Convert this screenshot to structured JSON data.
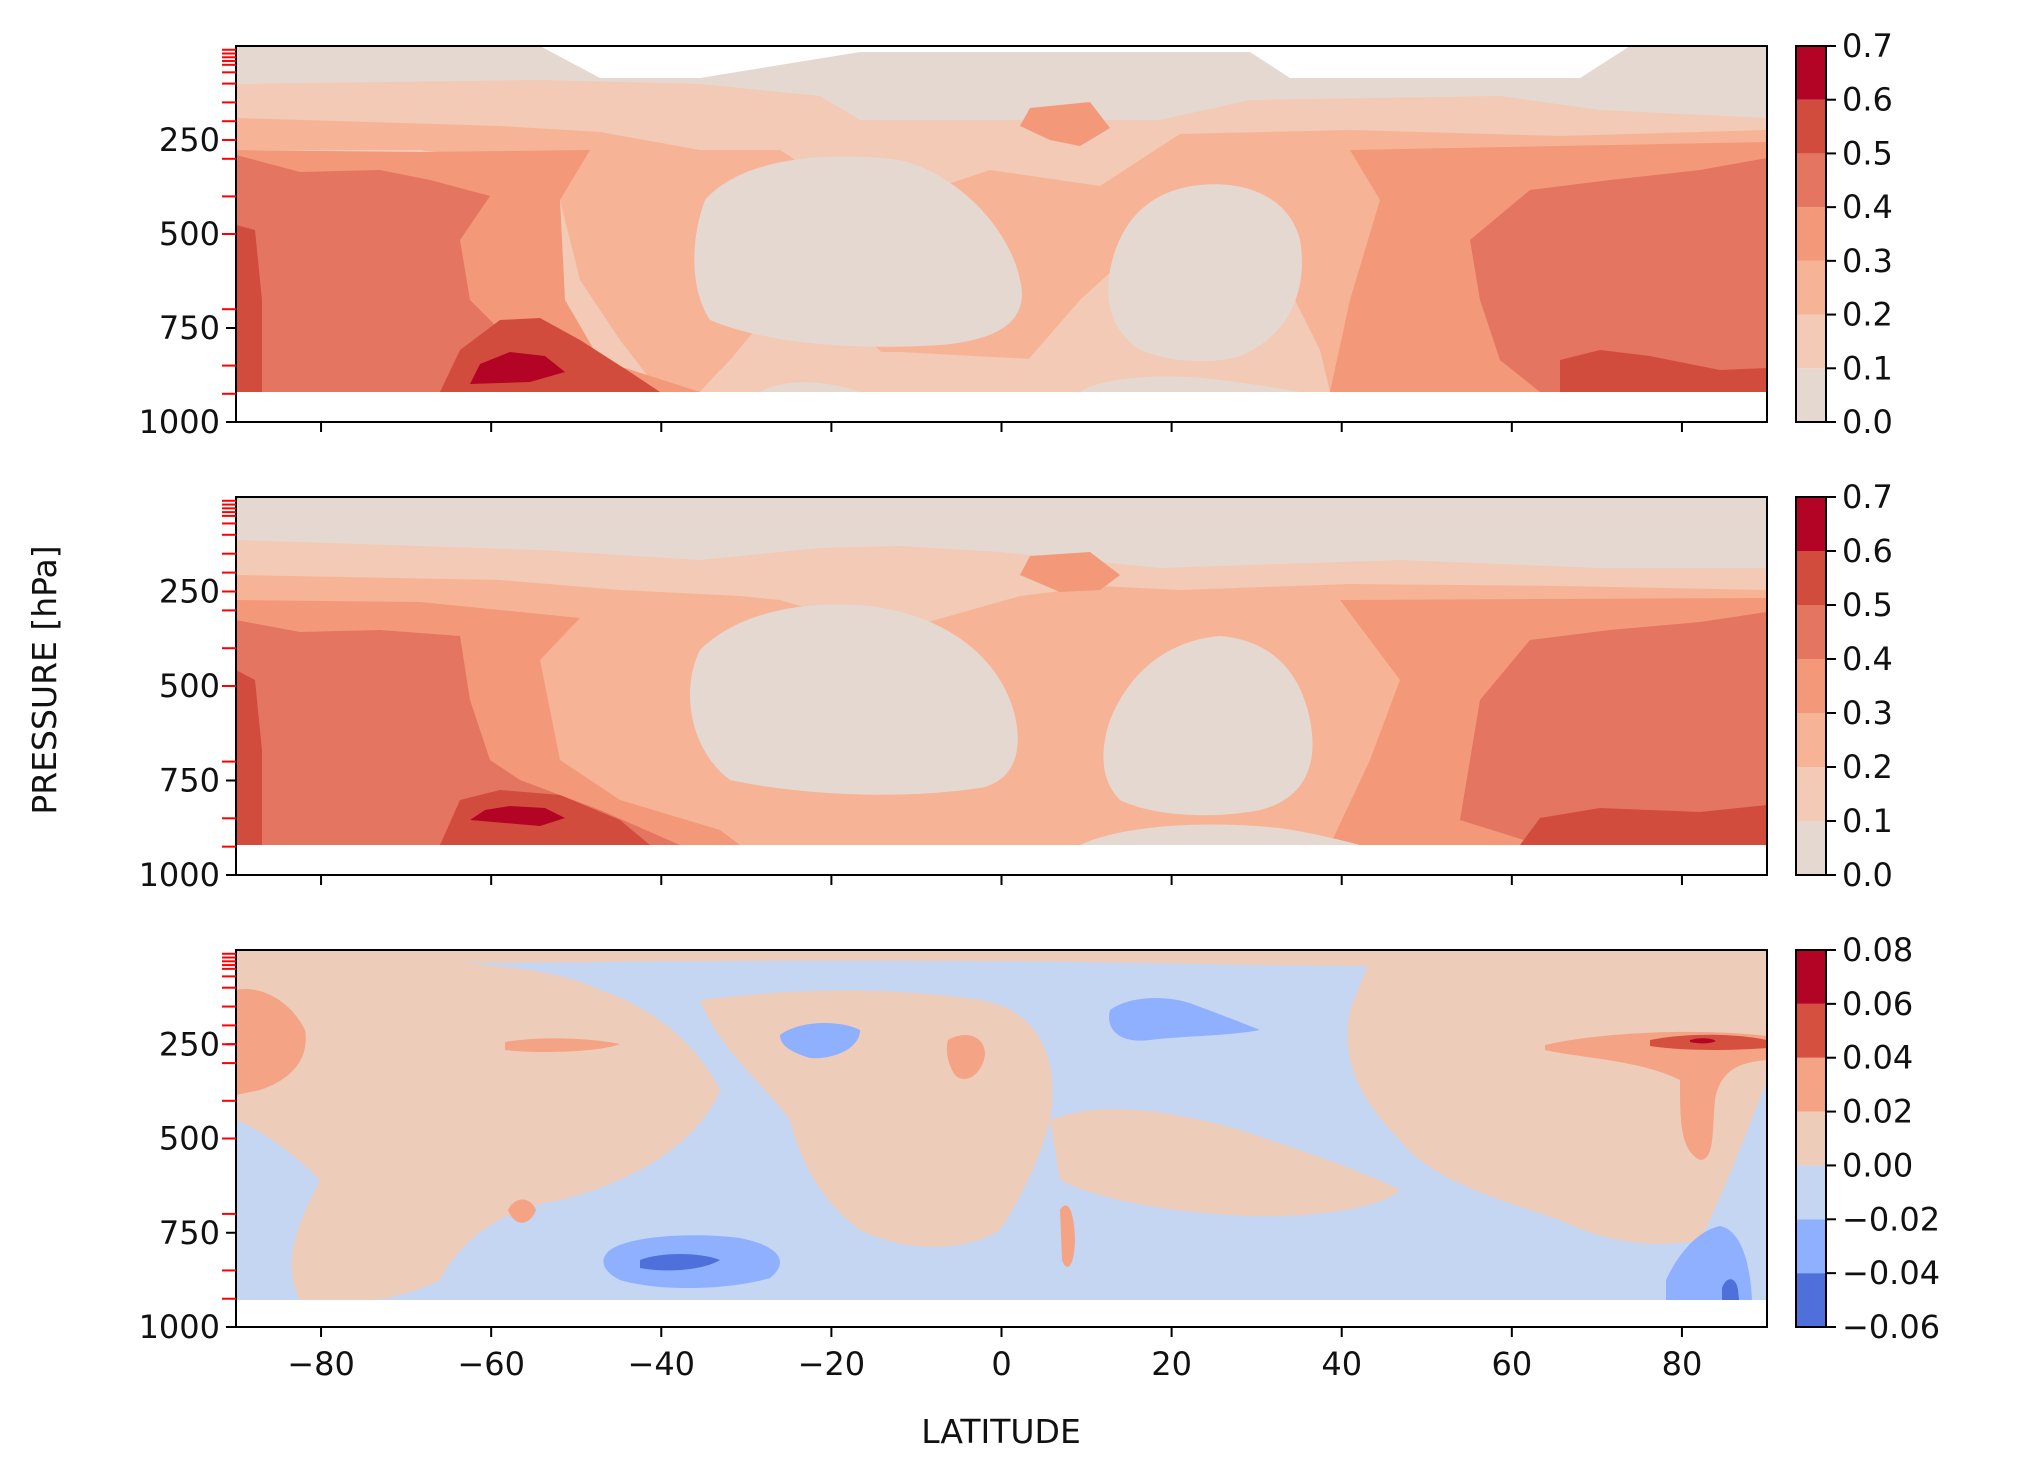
{
  "figure": {
    "ylabel": "PRESSURE [hPa]",
    "xlabel": "LATITUDE"
  },
  "colors": {
    "reds": [
      "#e5d8d1",
      "#f2cab5",
      "#f7b396",
      "#f39879",
      "#e47560",
      "#d24c3e",
      "#b40426"
    ],
    "diverging": [
      "#4f6fdb",
      "#8fb0fe",
      "#c5d6f2",
      "#eeccba",
      "#f4a385",
      "#d6503f",
      "#b40426"
    ],
    "level_tick": "#ff0000"
  },
  "chart_data": [
    {
      "type": "contour",
      "panel": "top",
      "x": [
        -80,
        -60,
        -40,
        -20,
        0,
        20,
        40,
        60,
        80
      ],
      "xlim": [
        -90,
        90
      ],
      "yticks": [
        250,
        500,
        750,
        1000
      ],
      "ylim": [
        1000,
        0
      ],
      "y_inverted": true,
      "colorbar": {
        "levels": [
          0.0,
          0.1,
          0.2,
          0.3,
          0.4,
          0.5,
          0.6,
          0.7
        ],
        "ticks": [
          "0.0",
          "0.1",
          "0.2",
          "0.3",
          "0.4",
          "0.5",
          "0.6",
          "0.7"
        ]
      },
      "max_feature": {
        "lat": -57,
        "pressure": 850,
        "value": 0.65
      },
      "profile_by_band": "near zero above ~150 hPa and in two tropical minima (~500-750 hPa near -25 and 20 lat); 0.4-0.5 in high latitudes below 300 hPa"
    },
    {
      "type": "contour",
      "panel": "middle",
      "x": [
        -80,
        -60,
        -40,
        -20,
        0,
        20,
        40,
        60,
        80
      ],
      "xlim": [
        -90,
        90
      ],
      "yticks": [
        250,
        500,
        750,
        1000
      ],
      "ylim": [
        1000,
        0
      ],
      "y_inverted": true,
      "colorbar": {
        "levels": [
          0.0,
          0.1,
          0.2,
          0.3,
          0.4,
          0.5,
          0.6,
          0.7
        ],
        "ticks": [
          "0.0",
          "0.1",
          "0.2",
          "0.3",
          "0.4",
          "0.5",
          "0.6",
          "0.7"
        ]
      },
      "max_feature": {
        "lat": -57,
        "pressure": 850,
        "value": 0.65
      }
    },
    {
      "type": "contour",
      "panel": "bottom",
      "x": [
        -80,
        -60,
        -40,
        -20,
        0,
        20,
        40,
        60,
        80
      ],
      "xlim": [
        -90,
        90
      ],
      "yticks": [
        250,
        500,
        750,
        1000
      ],
      "ylim": [
        1000,
        0
      ],
      "y_inverted": true,
      "colorbar": {
        "levels": [
          -0.06,
          -0.04,
          -0.02,
          0.0,
          0.02,
          0.04,
          0.06,
          0.08
        ],
        "ticks": [
          "−0.06",
          "−0.04",
          "−0.02",
          "0.00",
          "0.02",
          "0.04",
          "0.06",
          "0.08"
        ]
      },
      "max_feature": {
        "lat": 83,
        "pressure": 250,
        "value": 0.07
      },
      "min_feature": {
        "lat": -37,
        "pressure": 850,
        "value": -0.05
      }
    }
  ],
  "model_levels_hpa": [
    10,
    20,
    30,
    40,
    50,
    70,
    100,
    150,
    200,
    250,
    300,
    400,
    500,
    700,
    850,
    925
  ],
  "ytick_labels": [
    "250",
    "500",
    "750",
    "1000"
  ],
  "xtick_labels": [
    "−80",
    "−60",
    "−40",
    "−20",
    "0",
    "20",
    "40",
    "60",
    "80"
  ]
}
